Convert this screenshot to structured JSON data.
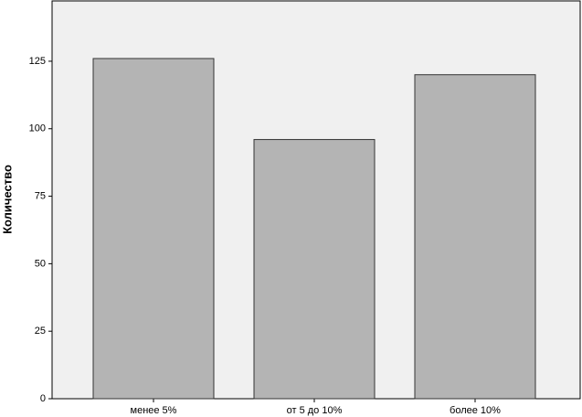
{
  "chart_data": {
    "type": "bar",
    "y_label": "Количество",
    "categories": [
      "менее 5%",
      "от 5 до 10%",
      "более 10%"
    ],
    "values": [
      126,
      96,
      120
    ],
    "color": "#b4b4b4",
    "ylim": [
      0,
      147
    ],
    "yticks": [
      0,
      25,
      50,
      75,
      100,
      125
    ],
    "grid": false
  }
}
